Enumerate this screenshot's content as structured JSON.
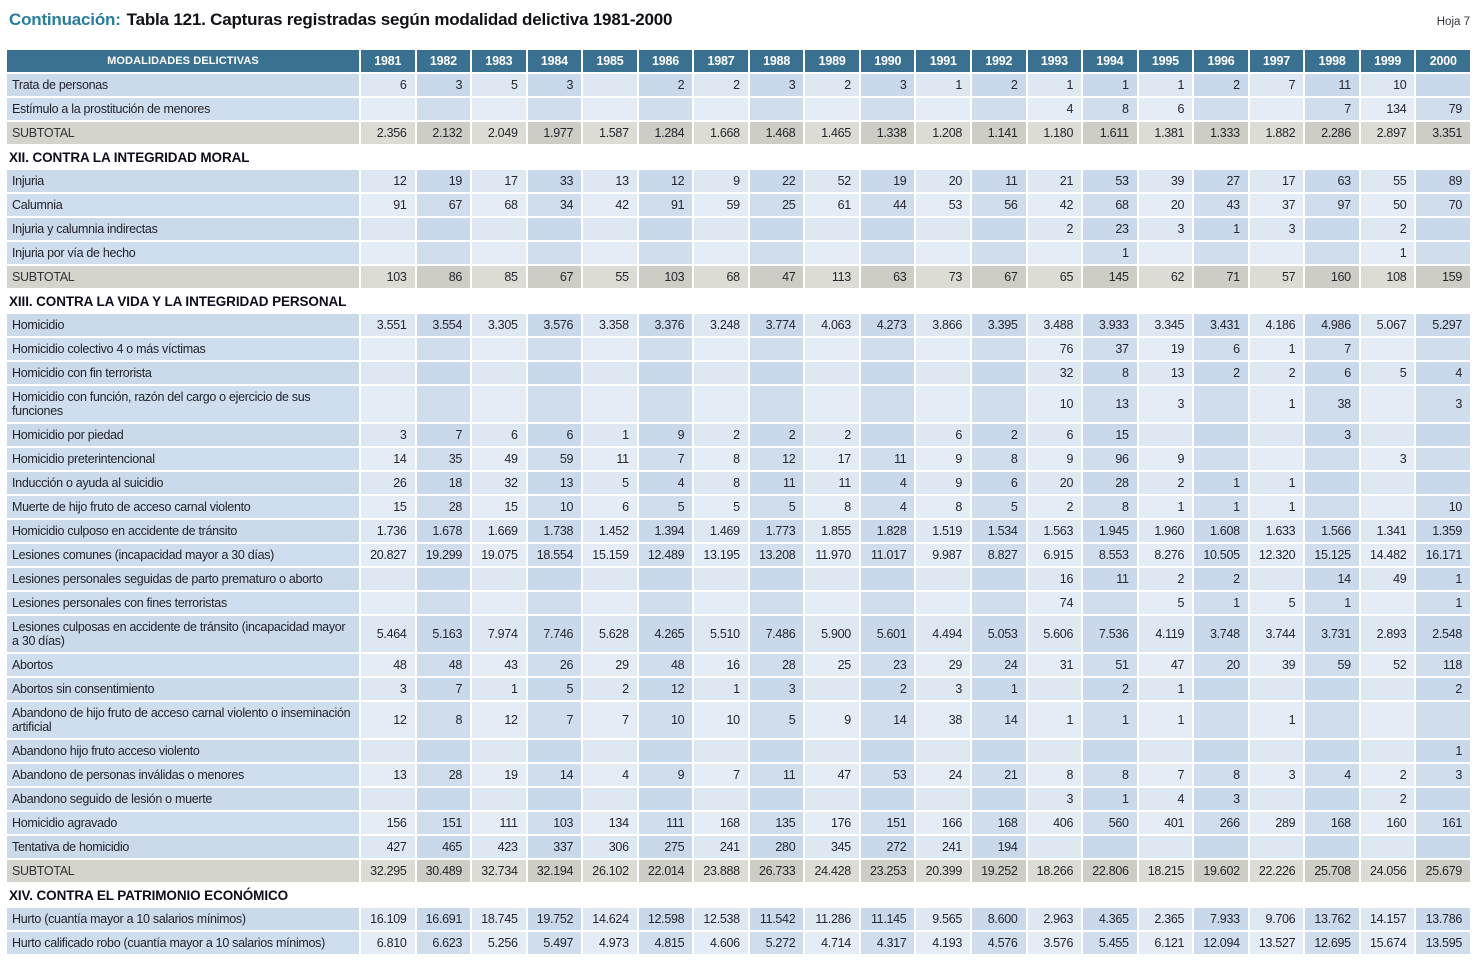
{
  "page": {
    "continuation_label": "Continuación:",
    "title": "Tabla 121.  Capturas registradas según modalidad delictiva 1981-2000",
    "sheet": "Hoja 7"
  },
  "table": {
    "header_label": "MODALIDADES DELICTIVAS",
    "years": [
      "1981",
      "1982",
      "1983",
      "1984",
      "1985",
      "1986",
      "1987",
      "1988",
      "1989",
      "1990",
      "1991",
      "1992",
      "1993",
      "1994",
      "1995",
      "1996",
      "1997",
      "1998",
      "1999",
      "2000"
    ],
    "rows": [
      {
        "type": "data",
        "label": "Trata de personas",
        "values": [
          "6",
          "3",
          "5",
          "3",
          "",
          "2",
          "2",
          "3",
          "2",
          "3",
          "1",
          "2",
          "1",
          "1",
          "1",
          "2",
          "7",
          "11",
          "10",
          ""
        ]
      },
      {
        "type": "data",
        "label": "Estímulo a la prostitución de menores",
        "values": [
          "",
          "",
          "",
          "",
          "",
          "",
          "",
          "",
          "",
          "",
          "",
          "",
          "4",
          "8",
          "6",
          "",
          "",
          "7",
          "134",
          "79"
        ]
      },
      {
        "type": "subtotal",
        "label": "SUBTOTAL",
        "values": [
          "2.356",
          "2.132",
          "2.049",
          "1.977",
          "1.587",
          "1.284",
          "1.668",
          "1.468",
          "1.465",
          "1.338",
          "1.208",
          "1.141",
          "1.180",
          "1.611",
          "1.381",
          "1.333",
          "1.882",
          "2.286",
          "2.897",
          "3.351"
        ]
      },
      {
        "type": "section",
        "label": "XII. CONTRA LA INTEGRIDAD MORAL"
      },
      {
        "type": "data",
        "label": "Injuria",
        "values": [
          "12",
          "19",
          "17",
          "33",
          "13",
          "12",
          "9",
          "22",
          "52",
          "19",
          "20",
          "11",
          "21",
          "53",
          "39",
          "27",
          "17",
          "63",
          "55",
          "89"
        ]
      },
      {
        "type": "data",
        "label": "Calumnia",
        "values": [
          "91",
          "67",
          "68",
          "34",
          "42",
          "91",
          "59",
          "25",
          "61",
          "44",
          "53",
          "56",
          "42",
          "68",
          "20",
          "43",
          "37",
          "97",
          "50",
          "70"
        ]
      },
      {
        "type": "data",
        "label": "Injuria y calumnia indirectas",
        "values": [
          "",
          "",
          "",
          "",
          "",
          "",
          "",
          "",
          "",
          "",
          "",
          "",
          "2",
          "23",
          "3",
          "1",
          "3",
          "",
          "2",
          ""
        ]
      },
      {
        "type": "data",
        "label": "Injuria por vía de hecho",
        "values": [
          "",
          "",
          "",
          "",
          "",
          "",
          "",
          "",
          "",
          "",
          "",
          "",
          "",
          "1",
          "",
          "",
          "",
          "",
          "1",
          ""
        ]
      },
      {
        "type": "subtotal",
        "label": "SUBTOTAL",
        "values": [
          "103",
          "86",
          "85",
          "67",
          "55",
          "103",
          "68",
          "47",
          "113",
          "63",
          "73",
          "67",
          "65",
          "145",
          "62",
          "71",
          "57",
          "160",
          "108",
          "159"
        ]
      },
      {
        "type": "section",
        "label": "XIII. CONTRA LA VIDA Y LA INTEGRIDAD PERSONAL"
      },
      {
        "type": "data",
        "label": "Homicidio",
        "values": [
          "3.551",
          "3.554",
          "3.305",
          "3.576",
          "3.358",
          "3.376",
          "3.248",
          "3.774",
          "4.063",
          "4.273",
          "3.866",
          "3.395",
          "3.488",
          "3.933",
          "3.345",
          "3.431",
          "4.186",
          "4.986",
          "5.067",
          "5.297"
        ]
      },
      {
        "type": "data",
        "label": "Homicidio colectivo 4  o más víctimas",
        "values": [
          "",
          "",
          "",
          "",
          "",
          "",
          "",
          "",
          "",
          "",
          "",
          "",
          "76",
          "37",
          "19",
          "6",
          "1",
          "7",
          "",
          ""
        ]
      },
      {
        "type": "data",
        "label": "Homicidio con fin terrorista",
        "values": [
          "",
          "",
          "",
          "",
          "",
          "",
          "",
          "",
          "",
          "",
          "",
          "",
          "32",
          "8",
          "13",
          "2",
          "2",
          "6",
          "5",
          "4"
        ]
      },
      {
        "type": "data",
        "label": "Homicidio con función, razón del cargo o ejercicio de sus funciones",
        "values": [
          "",
          "",
          "",
          "",
          "",
          "",
          "",
          "",
          "",
          "",
          "",
          "",
          "10",
          "13",
          "3",
          "",
          "1",
          "38",
          "",
          "3"
        ]
      },
      {
        "type": "data",
        "label": "Homicidio por piedad",
        "values": [
          "3",
          "7",
          "6",
          "6",
          "1",
          "9",
          "2",
          "2",
          "2",
          "",
          "6",
          "2",
          "6",
          "15",
          "",
          "",
          "",
          "3",
          "",
          ""
        ]
      },
      {
        "type": "data",
        "label": "Homicidio preterintencional",
        "values": [
          "14",
          "35",
          "49",
          "59",
          "11",
          "7",
          "8",
          "12",
          "17",
          "11",
          "9",
          "8",
          "9",
          "96",
          "9",
          "",
          "",
          "",
          "3",
          ""
        ]
      },
      {
        "type": "data",
        "label": "Inducción o ayuda al suicidio",
        "values": [
          "26",
          "18",
          "32",
          "13",
          "5",
          "4",
          "8",
          "11",
          "11",
          "4",
          "9",
          "6",
          "20",
          "28",
          "2",
          "1",
          "1",
          "",
          "",
          ""
        ]
      },
      {
        "type": "data",
        "label": "Muerte de hijo fruto de acceso carnal violento",
        "values": [
          "15",
          "28",
          "15",
          "10",
          "6",
          "5",
          "5",
          "5",
          "8",
          "4",
          "8",
          "5",
          "2",
          "8",
          "1",
          "1",
          "1",
          "",
          "",
          "10"
        ]
      },
      {
        "type": "data",
        "label": "Homicidio culposo en accidente de tránsito",
        "values": [
          "1.736",
          "1.678",
          "1.669",
          "1.738",
          "1.452",
          "1.394",
          "1.469",
          "1.773",
          "1.855",
          "1.828",
          "1.519",
          "1.534",
          "1.563",
          "1.945",
          "1.960",
          "1.608",
          "1.633",
          "1.566",
          "1.341",
          "1.359"
        ]
      },
      {
        "type": "data",
        "label": "Lesiones comunes (incapacidad mayor a 30 días)",
        "values": [
          "20.827",
          "19.299",
          "19.075",
          "18.554",
          "15.159",
          "12.489",
          "13.195",
          "13.208",
          "11.970",
          "11.017",
          "9.987",
          "8.827",
          "6.915",
          "8.553",
          "8.276",
          "10.505",
          "12.320",
          "15.125",
          "14.482",
          "16.171"
        ]
      },
      {
        "type": "data",
        "label": "Lesiones personales seguidas de parto prematuro o aborto",
        "values": [
          "",
          "",
          "",
          "",
          "",
          "",
          "",
          "",
          "",
          "",
          "",
          "",
          "16",
          "11",
          "2",
          "2",
          "",
          "14",
          "49",
          "1"
        ]
      },
      {
        "type": "data",
        "label": "Lesiones personales con fines terroristas",
        "values": [
          "",
          "",
          "",
          "",
          "",
          "",
          "",
          "",
          "",
          "",
          "",
          "",
          "74",
          "",
          "5",
          "1",
          "5",
          "1",
          "",
          "1"
        ]
      },
      {
        "type": "data",
        "label": "Lesiones culposas  en accidente de tránsito (incapacidad mayor a 30 días)",
        "values": [
          "5.464",
          "5.163",
          "7.974",
          "7.746",
          "5.628",
          "4.265",
          "5.510",
          "7.486",
          "5.900",
          "5.601",
          "4.494",
          "5.053",
          "5.606",
          "7.536",
          "4.119",
          "3.748",
          "3.744",
          "3.731",
          "2.893",
          "2.548"
        ]
      },
      {
        "type": "data",
        "label": "Abortos",
        "values": [
          "48",
          "48",
          "43",
          "26",
          "29",
          "48",
          "16",
          "28",
          "25",
          "23",
          "29",
          "24",
          "31",
          "51",
          "47",
          "20",
          "39",
          "59",
          "52",
          "118"
        ]
      },
      {
        "type": "data",
        "label": "Abortos sin consentimiento",
        "values": [
          "3",
          "7",
          "1",
          "5",
          "2",
          "12",
          "1",
          "3",
          "",
          "2",
          "3",
          "1",
          "",
          "2",
          "1",
          "",
          "",
          "",
          "",
          "2"
        ]
      },
      {
        "type": "data",
        "label": "Abandono de hijo fruto de acceso carnal violento o inseminación artificial",
        "values": [
          "12",
          "8",
          "12",
          "7",
          "7",
          "10",
          "10",
          "5",
          "9",
          "14",
          "38",
          "14",
          "1",
          "1",
          "1",
          "",
          "1",
          "",
          "",
          ""
        ]
      },
      {
        "type": "data",
        "label": "Abandono hijo fruto acceso violento",
        "values": [
          "",
          "",
          "",
          "",
          "",
          "",
          "",
          "",
          "",
          "",
          "",
          "",
          "",
          "",
          "",
          "",
          "",
          "",
          "",
          "1"
        ]
      },
      {
        "type": "data",
        "label": "Abandono de personas inválidas o menores",
        "values": [
          "13",
          "28",
          "19",
          "14",
          "4",
          "9",
          "7",
          "11",
          "47",
          "53",
          "24",
          "21",
          "8",
          "8",
          "7",
          "8",
          "3",
          "4",
          "2",
          "3"
        ]
      },
      {
        "type": "data",
        "label": "Abandono seguido de lesión o muerte",
        "values": [
          "",
          "",
          "",
          "",
          "",
          "",
          "",
          "",
          "",
          "",
          "",
          "",
          "3",
          "1",
          "4",
          "3",
          "",
          "",
          "2",
          ""
        ]
      },
      {
        "type": "data",
        "label": "Homicidio agravado",
        "values": [
          "156",
          "151",
          "111",
          "103",
          "134",
          "111",
          "168",
          "135",
          "176",
          "151",
          "166",
          "168",
          "406",
          "560",
          "401",
          "266",
          "289",
          "168",
          "160",
          "161"
        ]
      },
      {
        "type": "data",
        "label": "Tentativa de homicidio",
        "values": [
          "427",
          "465",
          "423",
          "337",
          "306",
          "275",
          "241",
          "280",
          "345",
          "272",
          "241",
          "194",
          "",
          "",
          "",
          "",
          "",
          "",
          "",
          ""
        ]
      },
      {
        "type": "subtotal",
        "label": "SUBTOTAL",
        "values": [
          "32.295",
          "30.489",
          "32.734",
          "32.194",
          "26.102",
          "22.014",
          "23.888",
          "26.733",
          "24.428",
          "23.253",
          "20.399",
          "19.252",
          "18.266",
          "22.806",
          "18.215",
          "19.602",
          "22.226",
          "25.708",
          "24.056",
          "25.679"
        ]
      },
      {
        "type": "section",
        "label": "XIV. CONTRA EL PATRIMONIO ECONÓMICO"
      },
      {
        "type": "data",
        "label": "Hurto (cuantía  mayor a 10 salarios mínimos)",
        "values": [
          "16.109",
          "16.691",
          "18.745",
          "19.752",
          "14.624",
          "12.598",
          "12.538",
          "11.542",
          "11.286",
          "11.145",
          "9.565",
          "8.600",
          "2.963",
          "4.365",
          "2.365",
          "7.933",
          "9.706",
          "13.762",
          "14.157",
          "13.786"
        ]
      },
      {
        "type": "data",
        "label": "Hurto calificado robo (cuantía mayor a 10 salarios mínimos)",
        "values": [
          "6.810",
          "6.623",
          "5.256",
          "5.497",
          "4.973",
          "4.815",
          "4.606",
          "5.272",
          "4.714",
          "4.317",
          "4.193",
          "4.576",
          "3.576",
          "5.455",
          "6.121",
          "12.094",
          "13.527",
          "12.695",
          "15.674",
          "13.595"
        ]
      }
    ]
  }
}
